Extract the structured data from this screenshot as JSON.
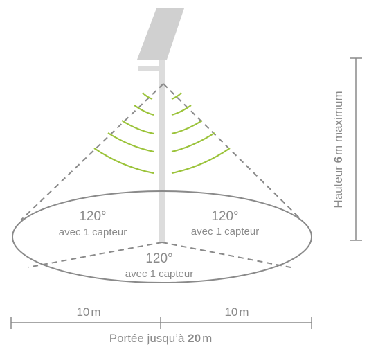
{
  "sectors": [
    {
      "angle": "120°",
      "caption": "avec 1 capteur"
    },
    {
      "angle": "120°",
      "caption": "avec 1 capteur"
    },
    {
      "angle": "120°",
      "caption": "avec 1 capteur"
    }
  ],
  "height_label": {
    "prefix": "Hauteur ",
    "value": "6",
    "unit": "m",
    "suffix": " maximum"
  },
  "left_distance": {
    "value": "10",
    "unit": "m"
  },
  "right_distance": {
    "value": "10",
    "unit": "m"
  },
  "range_label": {
    "prefix": "Portée jusqu’à ",
    "value": "20",
    "unit": "m"
  },
  "colors": {
    "wave": "#9bc33a",
    "line": "#8a8a8a",
    "panel": "#d0d0d0",
    "pole": "#dcdcdc"
  }
}
